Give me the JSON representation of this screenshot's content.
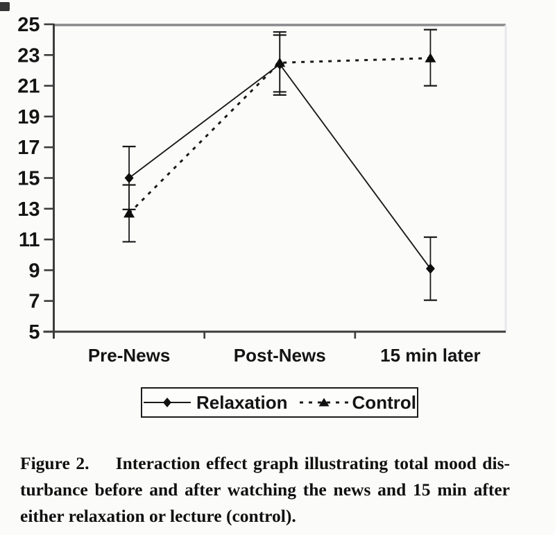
{
  "chart_data": {
    "type": "line",
    "title": "",
    "xlabel": "",
    "ylabel": "",
    "categories": [
      "Pre-News",
      "Post-News",
      "15 min later"
    ],
    "ylim": [
      5,
      25
    ],
    "yticks": [
      5,
      7,
      9,
      11,
      13,
      15,
      17,
      19,
      21,
      23,
      25
    ],
    "grid": false,
    "legend_position": "bottom",
    "series": [
      {
        "name": "Relaxation",
        "line_style": "solid",
        "marker": "diamond",
        "values": [
          15.0,
          22.4,
          9.1
        ],
        "error_low": [
          12.95,
          20.4,
          7.05
        ],
        "error_high": [
          17.05,
          24.5,
          11.15
        ]
      },
      {
        "name": "Control",
        "line_style": "dashed",
        "marker": "triangle",
        "values": [
          12.7,
          22.5,
          22.8
        ],
        "error_low": [
          10.85,
          20.6,
          21.0
        ],
        "error_high": [
          14.55,
          24.3,
          24.65
        ]
      }
    ],
    "colors": {
      "data": "#1a1a1a",
      "axis_dark": "#3c3c3c",
      "frame_top": "#8a8a8d",
      "frame_right": "#e7e7ec",
      "tick_label": "#141414"
    }
  },
  "caption": {
    "label": "Figure 2.",
    "lines": [
      "Figure 2.  Interaction effect graph illustrating total mood dis-",
      "turbance before and after watching the news and 15 min after",
      "either relaxation or lecture (control)."
    ]
  }
}
